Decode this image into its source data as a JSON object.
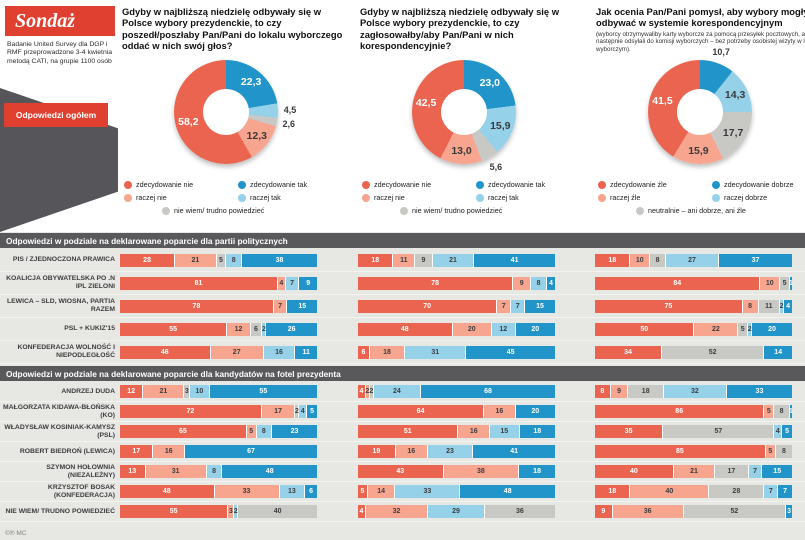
{
  "brand": {
    "title": "Sondaż",
    "description": "Badanie United Survey dla DGP i RMF przeprowadzone 3-4 kwietnia metodą CATI, na grupie 1100 osób",
    "overall_label": "Odpowiedzi ogółem",
    "footer": "©℗ MC"
  },
  "colors": {
    "r": "#ea6450",
    "lr": "#f7a58f",
    "db": "#2195c9",
    "lb": "#95d2ea",
    "g": "#c8c8c5",
    "accent_red": "#e0402f",
    "charcoal": "#55555a",
    "section_bar": "#59595c"
  },
  "chart_data": [
    {
      "type": "pie",
      "title": "Gdyby w najbliższą niedzielę odbywały się w Polsce wybory prezydenckie, to czy poszedł/poszłaby Pan/Pani do lokalu wyborczego oddać w nich swój głos?",
      "subtitle": "",
      "segments": [
        {
          "label": "zdecydowanie tak",
          "value": 22.3,
          "display": "22,3",
          "color": "db"
        },
        {
          "label": "raczej tak",
          "value": 4.5,
          "display": "4,5",
          "color": "lb"
        },
        {
          "label": "nie wiem/ trudno powiedzieć",
          "value": 2.6,
          "display": "2,6",
          "color": "g"
        },
        {
          "label": "raczej nie",
          "value": 12.3,
          "display": "12,3",
          "color": "lr"
        },
        {
          "label": "zdecydowanie nie",
          "value": 58.2,
          "display": "58,2",
          "color": "r"
        }
      ],
      "legend": [
        {
          "label": "zdecydowanie nie",
          "color": "r"
        },
        {
          "label": "zdecydowanie tak",
          "color": "db"
        },
        {
          "label": "raczej nie",
          "color": "lr"
        },
        {
          "label": "raczej tak",
          "color": "lb"
        },
        {
          "label": "nie wiem/ trudno powiedzieć",
          "color": "g"
        }
      ]
    },
    {
      "type": "pie",
      "title": "Gdyby w najbliższą niedzielę odbywały się w Polsce wybory prezydenckie, to czy zagłosowałby/aby Pan/Pani w nich korespondencyjnie?",
      "subtitle": "",
      "segments": [
        {
          "label": "zdecydowanie tak",
          "value": 23.0,
          "display": "23,0",
          "color": "db"
        },
        {
          "label": "raczej tak",
          "value": 15.9,
          "display": "15,9",
          "color": "lb"
        },
        {
          "label": "nie wiem/ trudno powiedzieć",
          "value": 5.6,
          "display": "5,6",
          "color": "g"
        },
        {
          "label": "raczej nie",
          "value": 13.0,
          "display": "13,0",
          "color": "lr"
        },
        {
          "label": "zdecydowanie nie",
          "value": 42.5,
          "display": "42,5",
          "color": "r"
        }
      ],
      "legend": [
        {
          "label": "zdecydowanie nie",
          "color": "r"
        },
        {
          "label": "zdecydowanie tak",
          "color": "db"
        },
        {
          "label": "raczej nie",
          "color": "lr"
        },
        {
          "label": "raczej tak",
          "color": "lb"
        },
        {
          "label": "nie wiem/ trudno powiedzieć",
          "color": "g"
        }
      ]
    },
    {
      "type": "pie",
      "title": "Jak ocenia Pan/Pani pomysł, aby wybory mogły się odbywać w systemie korespondencyjnym",
      "subtitle": "(wyborcy otrzymywaliby karty wyborcze za pomocą przesyłek pocztowych, a następnie odsyłali do komisji wyborczych – bez potrzeby osobistej wizyty w lokalu wyborczym).",
      "segments": [
        {
          "label": "zdecydowanie dobrze",
          "value": 10.7,
          "display": "10,7",
          "color": "db"
        },
        {
          "label": "raczej dobrze",
          "value": 14.3,
          "display": "14,3",
          "color": "lb"
        },
        {
          "label": "neutralnie – ani dobrze, ani źle",
          "value": 17.7,
          "display": "17,7",
          "color": "g"
        },
        {
          "label": "raczej źle",
          "value": 15.9,
          "display": "15,9",
          "color": "lr"
        },
        {
          "label": "zdecydowanie źle",
          "value": 41.5,
          "display": "41,5",
          "color": "r"
        }
      ],
      "legend": [
        {
          "label": "zdecydowanie źle",
          "color": "r"
        },
        {
          "label": "zdecydowanie dobrze",
          "color": "db"
        },
        {
          "label": "raczej źle",
          "color": "lr"
        },
        {
          "label": "raczej dobrze",
          "color": "lb"
        },
        {
          "label": "neutralnie – ani dobrze, ani źle",
          "color": "g"
        }
      ]
    },
    {
      "type": "bar",
      "title": "Odpowiedzi w podziale na deklarowane poparcie dla partii politycznych",
      "rows": [
        {
          "label": "PIS / ZJEDNOCZONA PRAWICA",
          "bars": [
            [
              {
                "v": 28,
                "c": "r"
              },
              {
                "v": 21,
                "c": "lr"
              },
              {
                "v": 5,
                "c": "g"
              },
              {
                "v": 8,
                "c": "lb"
              },
              {
                "v": 38,
                "c": "db"
              }
            ],
            [
              {
                "v": 18,
                "c": "r"
              },
              {
                "v": 11,
                "c": "lr"
              },
              {
                "v": 9,
                "c": "g"
              },
              {
                "v": 21,
                "c": "lb"
              },
              {
                "v": 41,
                "c": "db"
              }
            ],
            [
              {
                "v": 18,
                "c": "r"
              },
              {
                "v": 10,
                "c": "lr"
              },
              {
                "v": 8,
                "c": "g"
              },
              {
                "v": 27,
                "c": "lb"
              },
              {
                "v": 37,
                "c": "db"
              }
            ]
          ]
        },
        {
          "label": "KOALICJA OBYWATELSKA PO .N IPL ZIELONI",
          "bars": [
            [
              {
                "v": 81,
                "c": "r"
              },
              {
                "v": 4,
                "c": "lr"
              },
              {
                "v": 7,
                "c": "lb"
              },
              {
                "v": 9,
                "c": "db"
              }
            ],
            [
              {
                "v": 78,
                "c": "r"
              },
              {
                "v": 9,
                "c": "lr"
              },
              {
                "v": 8,
                "c": "lb"
              },
              {
                "v": 4,
                "c": "db"
              }
            ],
            [
              {
                "v": 84,
                "c": "r"
              },
              {
                "v": 10,
                "c": "lr"
              },
              {
                "v": 5,
                "c": "g"
              },
              {
                "v": 1,
                "c": "db"
              }
            ]
          ]
        },
        {
          "label": "LEWICA – SLD, WIOSNA, PARTIA RAZEM",
          "bars": [
            [
              {
                "v": 78,
                "c": "r"
              },
              {
                "v": 7,
                "c": "lr"
              },
              {
                "v": 15,
                "c": "db"
              }
            ],
            [
              {
                "v": 70,
                "c": "r"
              },
              {
                "v": 7,
                "c": "lr"
              },
              {
                "v": 7,
                "c": "lb"
              },
              {
                "v": 15,
                "c": "db"
              }
            ],
            [
              {
                "v": 75,
                "c": "r"
              },
              {
                "v": 8,
                "c": "lr"
              },
              {
                "v": 11,
                "c": "g"
              },
              {
                "v": 2,
                "c": "lb"
              },
              {
                "v": 4,
                "c": "db"
              }
            ]
          ]
        },
        {
          "label": "PSL + KUKIZ'15",
          "bars": [
            [
              {
                "v": 55,
                "c": "r"
              },
              {
                "v": 12,
                "c": "lr"
              },
              {
                "v": 6,
                "c": "g"
              },
              {
                "v": 2,
                "c": "lb"
              },
              {
                "v": 26,
                "c": "db"
              }
            ],
            [
              {
                "v": 48,
                "c": "r"
              },
              {
                "v": 20,
                "c": "lr"
              },
              {
                "v": 12,
                "c": "lb"
              },
              {
                "v": 20,
                "c": "db"
              }
            ],
            [
              {
                "v": 50,
                "c": "r"
              },
              {
                "v": 22,
                "c": "lr"
              },
              {
                "v": 5,
                "c": "g"
              },
              {
                "v": 2,
                "c": "lb"
              },
              {
                "v": 20,
                "c": "db"
              }
            ]
          ]
        },
        {
          "label": "KONFEDERACJA WOLNOŚĆ I NIEPODLEGŁOŚĆ",
          "bars": [
            [
              {
                "v": 46,
                "c": "r"
              },
              {
                "v": 27,
                "c": "lr"
              },
              {
                "v": 16,
                "c": "lb"
              },
              {
                "v": 11,
                "c": "db"
              }
            ],
            [
              {
                "v": 6,
                "c": "r"
              },
              {
                "v": 18,
                "c": "lr"
              },
              {
                "v": 31,
                "c": "lb"
              },
              {
                "v": 45,
                "c": "db"
              }
            ],
            [
              {
                "v": 34,
                "c": "r"
              },
              {
                "v": 52,
                "c": "g"
              },
              {
                "v": 14,
                "c": "db"
              }
            ]
          ]
        }
      ]
    },
    {
      "type": "bar",
      "title": "Odpowiedzi w podziale na deklarowane poparcie dla kandydatów na fotel prezydenta",
      "rows": [
        {
          "label": "ANDRZEJ DUDA",
          "bars": [
            [
              {
                "v": 12,
                "c": "r"
              },
              {
                "v": 21,
                "c": "lr"
              },
              {
                "v": 3,
                "c": "g"
              },
              {
                "v": 10,
                "c": "lb"
              },
              {
                "v": 55,
                "c": "db"
              }
            ],
            [
              {
                "v": 4,
                "c": "r"
              },
              {
                "v": 2,
                "c": "lr"
              },
              {
                "v": 2,
                "c": "g"
              },
              {
                "v": 24,
                "c": "lb"
              },
              {
                "v": 68,
                "c": "db"
              }
            ],
            [
              {
                "v": 8,
                "c": "r"
              },
              {
                "v": 9,
                "c": "lr"
              },
              {
                "v": 18,
                "c": "g"
              },
              {
                "v": 32,
                "c": "lb"
              },
              {
                "v": 33,
                "c": "db"
              }
            ]
          ]
        },
        {
          "label": "MAŁGORZATA KIDAWA-BŁOŃSKA (KO)",
          "bars": [
            [
              {
                "v": 72,
                "c": "r"
              },
              {
                "v": 17,
                "c": "lr"
              },
              {
                "v": 2,
                "c": "g"
              },
              {
                "v": 4,
                "c": "lb"
              },
              {
                "v": 5,
                "c": "db"
              }
            ],
            [
              {
                "v": 64,
                "c": "r"
              },
              {
                "v": 16,
                "c": "lr"
              },
              {
                "v": 20,
                "c": "db"
              }
            ],
            [
              {
                "v": 86,
                "c": "r"
              },
              {
                "v": 5,
                "c": "lr"
              },
              {
                "v": 8,
                "c": "g"
              },
              {
                "v": 1,
                "c": "db"
              }
            ]
          ]
        },
        {
          "label": "WŁADYSŁAW KOSINIAK-KAMYSZ (PSL)",
          "bars": [
            [
              {
                "v": 65,
                "c": "r"
              },
              {
                "v": 5,
                "c": "lr"
              },
              {
                "v": 8,
                "c": "lb"
              },
              {
                "v": 23,
                "c": "db"
              }
            ],
            [
              {
                "v": 51,
                "c": "r"
              },
              {
                "v": 16,
                "c": "lr"
              },
              {
                "v": 15,
                "c": "lb"
              },
              {
                "v": 18,
                "c": "db"
              }
            ],
            [
              {
                "v": 35,
                "c": "r"
              },
              {
                "v": 57,
                "c": "g"
              },
              {
                "v": 4,
                "c": "lb"
              },
              {
                "v": 5,
                "c": "db"
              }
            ]
          ]
        },
        {
          "label": "ROBERT BIEDROŃ (LEWICA)",
          "bars": [
            [
              {
                "v": 17,
                "c": "r"
              },
              {
                "v": 16,
                "c": "lr"
              },
              {
                "v": 67,
                "c": "db"
              }
            ],
            [
              {
                "v": 19,
                "c": "r"
              },
              {
                "v": 16,
                "c": "lr"
              },
              {
                "v": 23,
                "c": "lb"
              },
              {
                "v": 41,
                "c": "db"
              }
            ],
            [
              {
                "v": 85,
                "c": "r"
              },
              {
                "v": 5,
                "c": "lr"
              },
              {
                "v": 8,
                "c": "g"
              }
            ]
          ]
        },
        {
          "label": "SZYMON HOŁOWNIA (NIEZALEŻNY)",
          "bars": [
            [
              {
                "v": 13,
                "c": "r"
              },
              {
                "v": 31,
                "c": "lr"
              },
              {
                "v": 8,
                "c": "lb"
              },
              {
                "v": 48,
                "c": "db"
              }
            ],
            [
              {
                "v": 43,
                "c": "r"
              },
              {
                "v": 38,
                "c": "lr"
              },
              {
                "v": 18,
                "c": "db"
              }
            ],
            [
              {
                "v": 40,
                "c": "r"
              },
              {
                "v": 21,
                "c": "lr"
              },
              {
                "v": 17,
                "c": "g"
              },
              {
                "v": 7,
                "c": "lb"
              },
              {
                "v": 15,
                "c": "db"
              }
            ]
          ]
        },
        {
          "label": "KRZYSZTOF BOSAK (KONFEDERACJA)",
          "bars": [
            [
              {
                "v": 48,
                "c": "r"
              },
              {
                "v": 33,
                "c": "lr"
              },
              {
                "v": 13,
                "c": "lb"
              },
              {
                "v": 6,
                "c": "db"
              }
            ],
            [
              {
                "v": 5,
                "c": "r"
              },
              {
                "v": 14,
                "c": "lr"
              },
              {
                "v": 33,
                "c": "lb"
              },
              {
                "v": 48,
                "c": "db"
              }
            ],
            [
              {
                "v": 18,
                "c": "r"
              },
              {
                "v": 40,
                "c": "lr"
              },
              {
                "v": 28,
                "c": "g"
              },
              {
                "v": 7,
                "c": "lb"
              },
              {
                "v": 7,
                "c": "db"
              }
            ]
          ]
        },
        {
          "label": "NIE WIEM/ TRUDNO POWIEDZIEĆ",
          "bars": [
            [
              {
                "v": 55,
                "c": "r"
              },
              {
                "v": 3,
                "c": "lr"
              },
              {
                "v": 2,
                "c": "lb"
              },
              {
                "v": 40,
                "c": "g"
              }
            ],
            [
              {
                "v": 4,
                "c": "r"
              },
              {
                "v": 32,
                "c": "lr"
              },
              {
                "v": 29,
                "c": "lb"
              },
              {
                "v": 36,
                "c": "g"
              }
            ],
            [
              {
                "v": 9,
                "c": "r"
              },
              {
                "v": 36,
                "c": "lr"
              },
              {
                "v": 52,
                "c": "g"
              },
              {
                "v": 3,
                "c": "db"
              }
            ]
          ]
        }
      ]
    }
  ]
}
